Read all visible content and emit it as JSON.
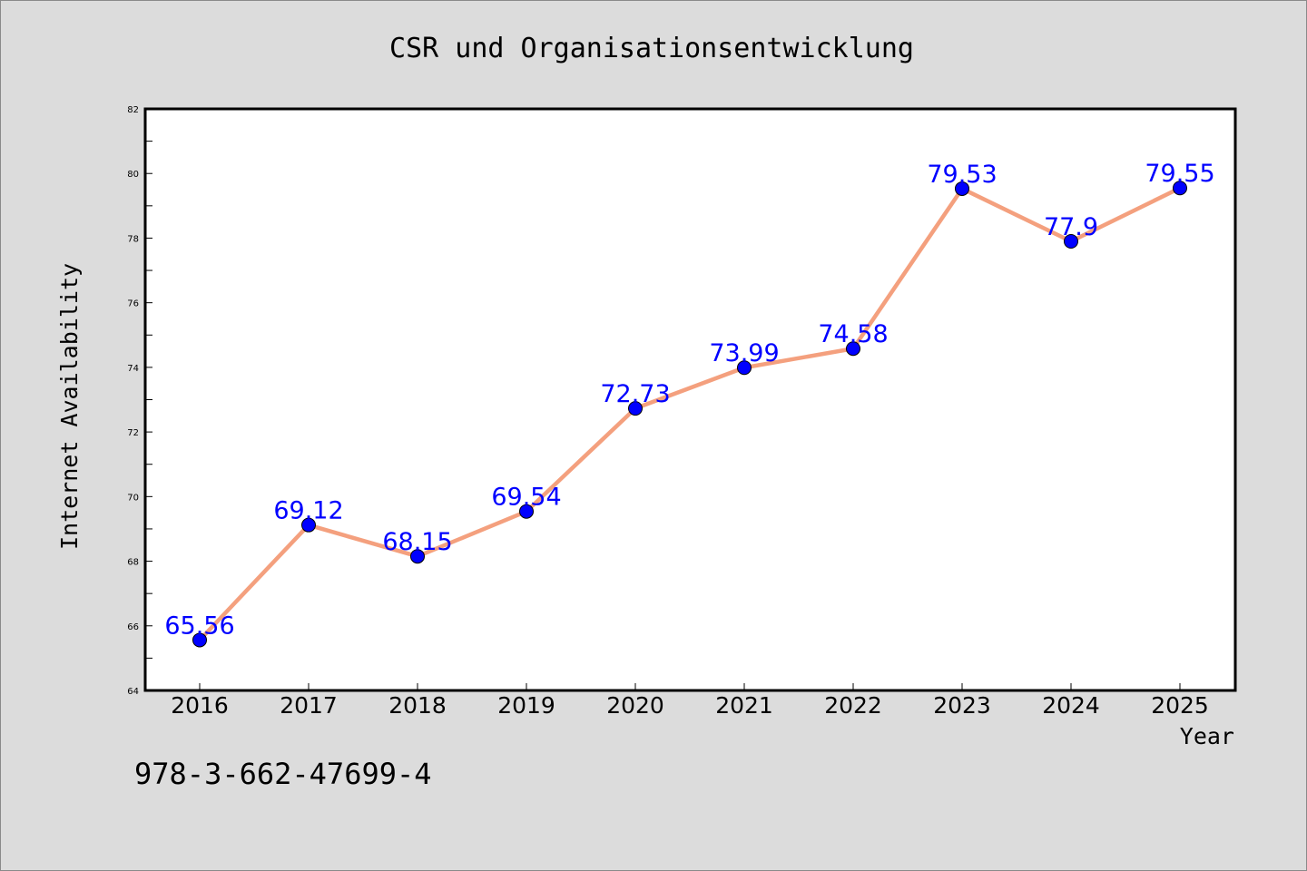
{
  "chart_data": {
    "type": "line",
    "title": "CSR und Organisationsentwicklung",
    "xlabel": "Year",
    "ylabel": "Internet Availability",
    "x": [
      2016,
      2017,
      2018,
      2019,
      2020,
      2021,
      2022,
      2023,
      2024,
      2025
    ],
    "x_tick_labels": [
      "2016",
      "2017",
      "2018",
      "2019",
      "2020",
      "2021",
      "2022",
      "2023",
      "2024",
      "2025"
    ],
    "values": [
      65.56,
      69.12,
      68.15,
      69.54,
      72.73,
      73.99,
      74.58,
      79.53,
      77.9,
      79.55
    ],
    "data_labels": [
      "65.56",
      "69.12",
      "68.15",
      "69.54",
      "72.73",
      "73.99",
      "74.58",
      "79.53",
      "77.9",
      "79.55"
    ],
    "ylim": [
      64,
      82
    ],
    "y_tick_labels": [
      "64",
      "66",
      "68",
      "70",
      "72",
      "74",
      "76",
      "78",
      "80",
      "82"
    ],
    "y_major_step": 2,
    "y_minor_step": 1,
    "grid": false,
    "legend": "none",
    "line_color": "#f4a07e",
    "marker_color": "#0000ff",
    "label_color": "#0000ff",
    "background_color": "#dcdcdc",
    "plot_background_color": "#ffffff"
  },
  "footer": {
    "isbn": "978-3-662-47699-4"
  }
}
